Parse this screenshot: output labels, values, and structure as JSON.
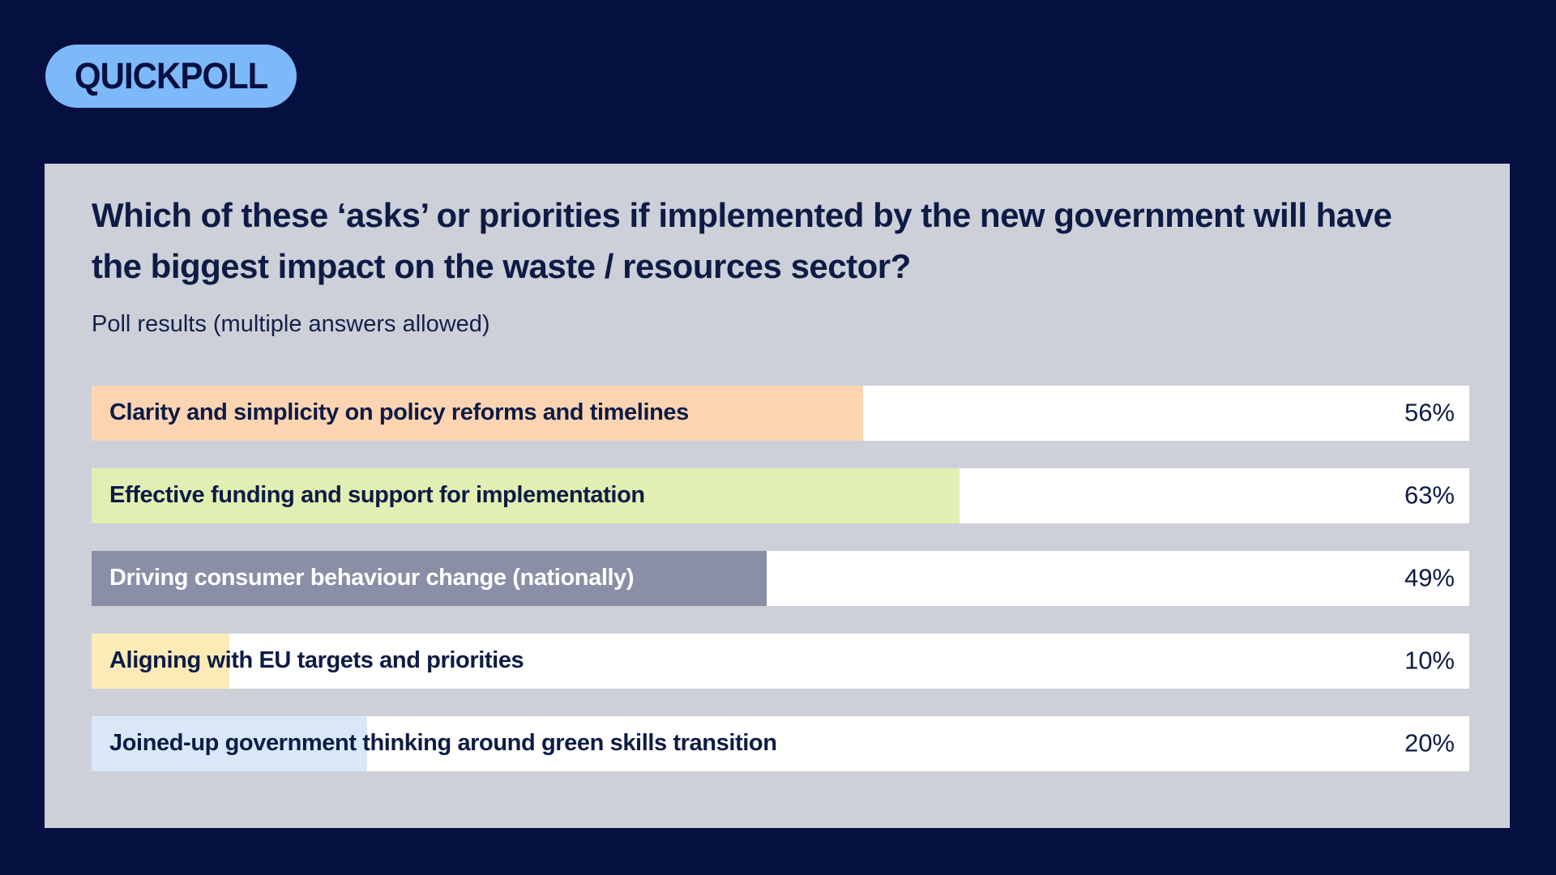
{
  "badge": {
    "label": "QUICKPOLL"
  },
  "poll": {
    "title": "Which of these ‘asks’ or priorities if implemented by the new government will have the biggest impact on the waste / resources sector?",
    "subtitle": "Poll results (multiple answers allowed)",
    "results": [
      {
        "label": "Clarity and simplicity on policy reforms and timelines",
        "percent": 56,
        "percent_label": "56%",
        "fill_color": "#fcd4b2",
        "label_color": "#0d1b45"
      },
      {
        "label": "Effective funding and support for implementation",
        "percent": 63,
        "percent_label": "63%",
        "fill_color": "#e2efb3",
        "label_color": "#0d1b45"
      },
      {
        "label": "Driving consumer behaviour change (nationally)",
        "percent": 49,
        "percent_label": "49%",
        "fill_color": "#8a8fa7",
        "label_color": "#ffffff"
      },
      {
        "label": "Aligning with EU targets and priorities",
        "percent": 10,
        "percent_label": "10%",
        "fill_color": "#fcebb7",
        "label_color": "#0d1b45"
      },
      {
        "label": "Joined-up government thinking around green skills transition",
        "percent": 20,
        "percent_label": "20%",
        "fill_color": "#d9e7f9",
        "label_color": "#0d1b45"
      }
    ]
  },
  "colors": {
    "background": "#051041",
    "badge_bg": "#7db9f8",
    "badge_text": "#051041",
    "card_bg": "#cdd0d8",
    "track_bg": "#ffffff",
    "text_navy": "#0d1b45"
  },
  "chart_data": {
    "type": "bar",
    "orientation": "horizontal",
    "title": "Which of these ‘asks’ or priorities if implemented by the new government will have the biggest impact on the waste / resources sector?",
    "subtitle": "Poll results (multiple answers allowed)",
    "categories": [
      "Clarity and simplicity on policy reforms and timelines",
      "Effective funding and support for implementation",
      "Driving consumer behaviour change (nationally)",
      "Aligning with EU targets and priorities",
      "Joined-up government thinking around green skills transition"
    ],
    "values": [
      56,
      63,
      49,
      10,
      20
    ],
    "unit": "%",
    "xlim": [
      0,
      100
    ],
    "grid": false,
    "legend": false,
    "value_labels_position": "right-inside-track",
    "bar_colors": [
      "#fcd4b2",
      "#e2efb3",
      "#8a8fa7",
      "#fcebb7",
      "#d9e7f9"
    ]
  }
}
